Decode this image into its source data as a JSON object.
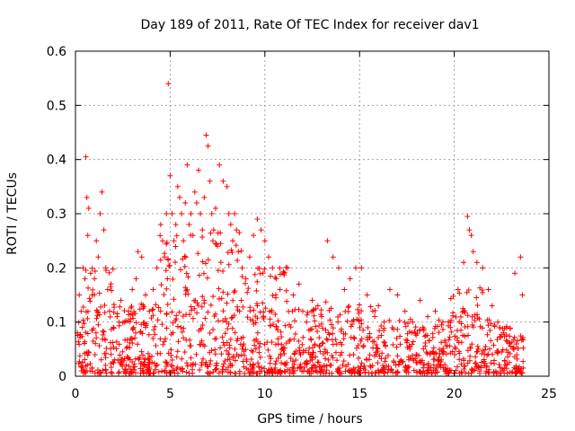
{
  "chart_data": {
    "type": "scatter",
    "title": "Day 189 of 2011, Rate Of TEC Index for receiver dav1",
    "xlabel": "GPS time / hours",
    "ylabel": "ROTI / TECUs",
    "xlim": [
      0,
      25
    ],
    "ylim": [
      0,
      0.6
    ],
    "xticks": [
      0,
      5,
      10,
      15,
      20,
      25
    ],
    "xtick_labels": [
      "0",
      "5",
      "10",
      "15",
      "20",
      "25"
    ],
    "yticks": [
      0,
      0.1,
      0.2,
      0.3,
      0.4,
      0.5,
      0.6
    ],
    "ytick_labels": [
      "0",
      "0.1",
      "0.2",
      "0.3",
      "0.4",
      "0.5",
      "0.6"
    ],
    "grid": true,
    "marker": "+",
    "color": "#ff0000",
    "series": [
      {
        "x": [
          0.1,
          0.2,
          0.3,
          0.4,
          0.5,
          0.55,
          0.6,
          0.65,
          0.7,
          0.8,
          0.9,
          1.0,
          1.1,
          1.2,
          1.3,
          1.4,
          1.5,
          1.6,
          1.7,
          1.8,
          2.0,
          2.2,
          2.4,
          2.6,
          2.8,
          3.0,
          3.2,
          3.3,
          3.5,
          3.7,
          3.9,
          4.1,
          4.3,
          4.5,
          4.6,
          4.7,
          4.8,
          4.9,
          5.0,
          5.1,
          5.2,
          5.3,
          5.4,
          5.5,
          5.6,
          5.7,
          5.8,
          5.9,
          6.0,
          6.1,
          6.2,
          6.3,
          6.4,
          6.5,
          6.6,
          6.7,
          6.8,
          6.9,
          7.0,
          7.1,
          7.2,
          7.3,
          7.4,
          7.5,
          7.6,
          7.8,
          8.0,
          8.1,
          8.2,
          8.3,
          8.4,
          8.5,
          8.6,
          8.8,
          9.0,
          9.2,
          9.4,
          9.6,
          9.8,
          10.0,
          10.2,
          10.4,
          10.6,
          10.8,
          11.0,
          11.2,
          11.5,
          11.8,
          12.0,
          12.2,
          12.5,
          12.8,
          13.0,
          13.3,
          13.6,
          13.9,
          14.2,
          14.5,
          14.8,
          15.1,
          15.4,
          15.7,
          16.0,
          16.3,
          16.6,
          17.0,
          17.4,
          17.8,
          18.2,
          18.6,
          19.0,
          19.4,
          19.8,
          20.2,
          20.5,
          20.7,
          20.8,
          20.9,
          21.0,
          21.2,
          21.5,
          21.8,
          22.0,
          22.3,
          22.6,
          22.9,
          23.2,
          23.5,
          23.6
        ],
        "y": [
          0.08,
          0.15,
          0.12,
          0.2,
          0.18,
          0.405,
          0.33,
          0.26,
          0.31,
          0.19,
          0.15,
          0.18,
          0.25,
          0.22,
          0.3,
          0.34,
          0.27,
          0.2,
          0.16,
          0.12,
          0.09,
          0.11,
          0.14,
          0.1,
          0.12,
          0.16,
          0.18,
          0.23,
          0.22,
          0.15,
          0.12,
          0.16,
          0.2,
          0.28,
          0.25,
          0.22,
          0.3,
          0.54,
          0.37,
          0.3,
          0.25,
          0.28,
          0.35,
          0.33,
          0.3,
          0.25,
          0.32,
          0.39,
          0.28,
          0.3,
          0.26,
          0.34,
          0.32,
          0.38,
          0.3,
          0.27,
          0.33,
          0.445,
          0.425,
          0.36,
          0.3,
          0.27,
          0.31,
          0.24,
          0.39,
          0.36,
          0.35,
          0.3,
          0.28,
          0.25,
          0.3,
          0.27,
          0.23,
          0.2,
          0.18,
          0.22,
          0.26,
          0.29,
          0.27,
          0.25,
          0.22,
          0.2,
          0.18,
          0.16,
          0.19,
          0.2,
          0.15,
          0.17,
          0.12,
          0.1,
          0.14,
          0.13,
          0.11,
          0.25,
          0.22,
          0.2,
          0.16,
          0.18,
          0.2,
          0.2,
          0.15,
          0.12,
          0.13,
          0.1,
          0.16,
          0.15,
          0.12,
          0.1,
          0.14,
          0.11,
          0.12,
          0.1,
          0.09,
          0.16,
          0.21,
          0.295,
          0.27,
          0.26,
          0.23,
          0.21,
          0.2,
          0.16,
          0.13,
          0.1,
          0.08,
          0.06,
          0.19,
          0.22,
          0.15
        ]
      }
    ]
  }
}
